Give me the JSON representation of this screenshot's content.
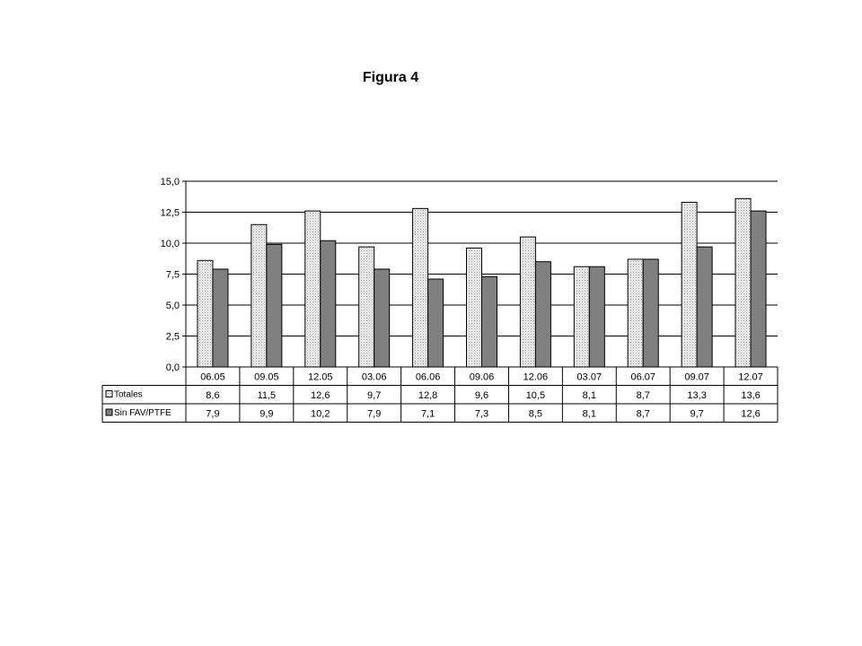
{
  "page": {
    "title": "Figura 4"
  },
  "chart_data": {
    "type": "bar",
    "title": "",
    "xlabel": "",
    "ylabel": "",
    "ylim": [
      0,
      15
    ],
    "yticks": [
      "0,0",
      "2,5",
      "5,0",
      "7,5",
      "10,0",
      "12,5",
      "15,0"
    ],
    "grid": true,
    "legend": "data-table",
    "categories": [
      "06.05",
      "09.05",
      "12.05",
      "03.06",
      "06.06",
      "09.06",
      "12.06",
      "03.07",
      "06.07",
      "09.07",
      "12.07"
    ],
    "series": [
      {
        "name": "Totales",
        "values": [
          8.6,
          11.5,
          12.6,
          9.7,
          12.8,
          9.6,
          10.5,
          8.1,
          8.7,
          13.3,
          13.6
        ],
        "labels": [
          "8,6",
          "11,5",
          "12,6",
          "9,7",
          "12,8",
          "9,6",
          "10,5",
          "8,1",
          "8,7",
          "13,3",
          "13,6"
        ],
        "color": "#e8e8e8"
      },
      {
        "name": "Sin FAV/PTFE",
        "values": [
          7.9,
          9.9,
          10.2,
          7.9,
          7.1,
          7.3,
          8.5,
          8.1,
          8.7,
          9.7,
          12.6
        ],
        "labels": [
          "7,9",
          "9,9",
          "10,2",
          "7,9",
          "7,1",
          "7,3",
          "8,5",
          "8,1",
          "8,7",
          "9,7",
          "12,6"
        ],
        "color": "#808080"
      }
    ]
  }
}
